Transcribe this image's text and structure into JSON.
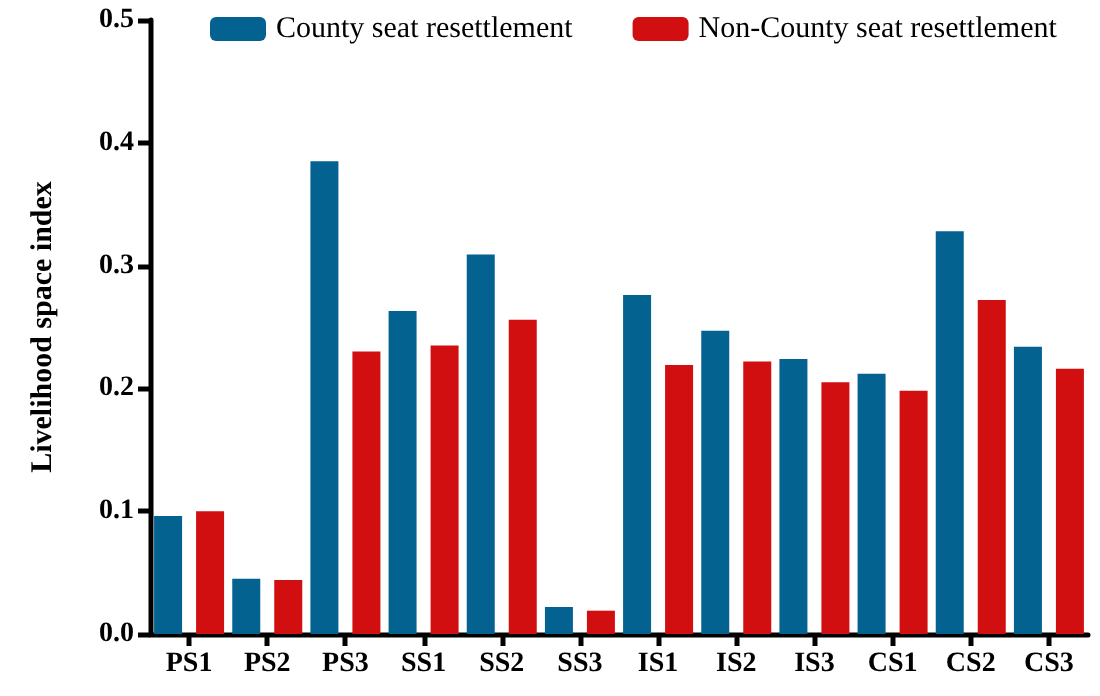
{
  "chart_data": {
    "type": "bar",
    "ylabel": "Livelihood space index",
    "categories": [
      "PS1",
      "PS2",
      "PS3",
      "SS1",
      "SS2",
      "SS3",
      "IS1",
      "IS2",
      "IS3",
      "CS1",
      "CS2",
      "CS3"
    ],
    "series": [
      {
        "name": "County seat resettlement",
        "color": "#036290",
        "values": [
          0.096,
          0.045,
          0.385,
          0.263,
          0.309,
          0.022,
          0.276,
          0.247,
          0.224,
          0.212,
          0.328,
          0.234
        ]
      },
      {
        "name": "Non-County seat resettlement",
        "color": "#d10f10",
        "values": [
          0.1,
          0.044,
          0.23,
          0.235,
          0.256,
          0.019,
          0.219,
          0.222,
          0.205,
          0.198,
          0.272,
          0.216
        ]
      }
    ],
    "ylim": [
      0,
      0.5
    ],
    "yticks": [
      {
        "value": 0,
        "label": "0.0"
      },
      {
        "value": 0.1,
        "label": "0.1"
      },
      {
        "value": 0.2,
        "label": "0.2"
      },
      {
        "value": 0.3,
        "label": "0.3"
      },
      {
        "value": 0.4,
        "label": "0.4"
      },
      {
        "value": 0.5,
        "label": "0.5"
      }
    ],
    "grid": false,
    "legend": "top"
  }
}
